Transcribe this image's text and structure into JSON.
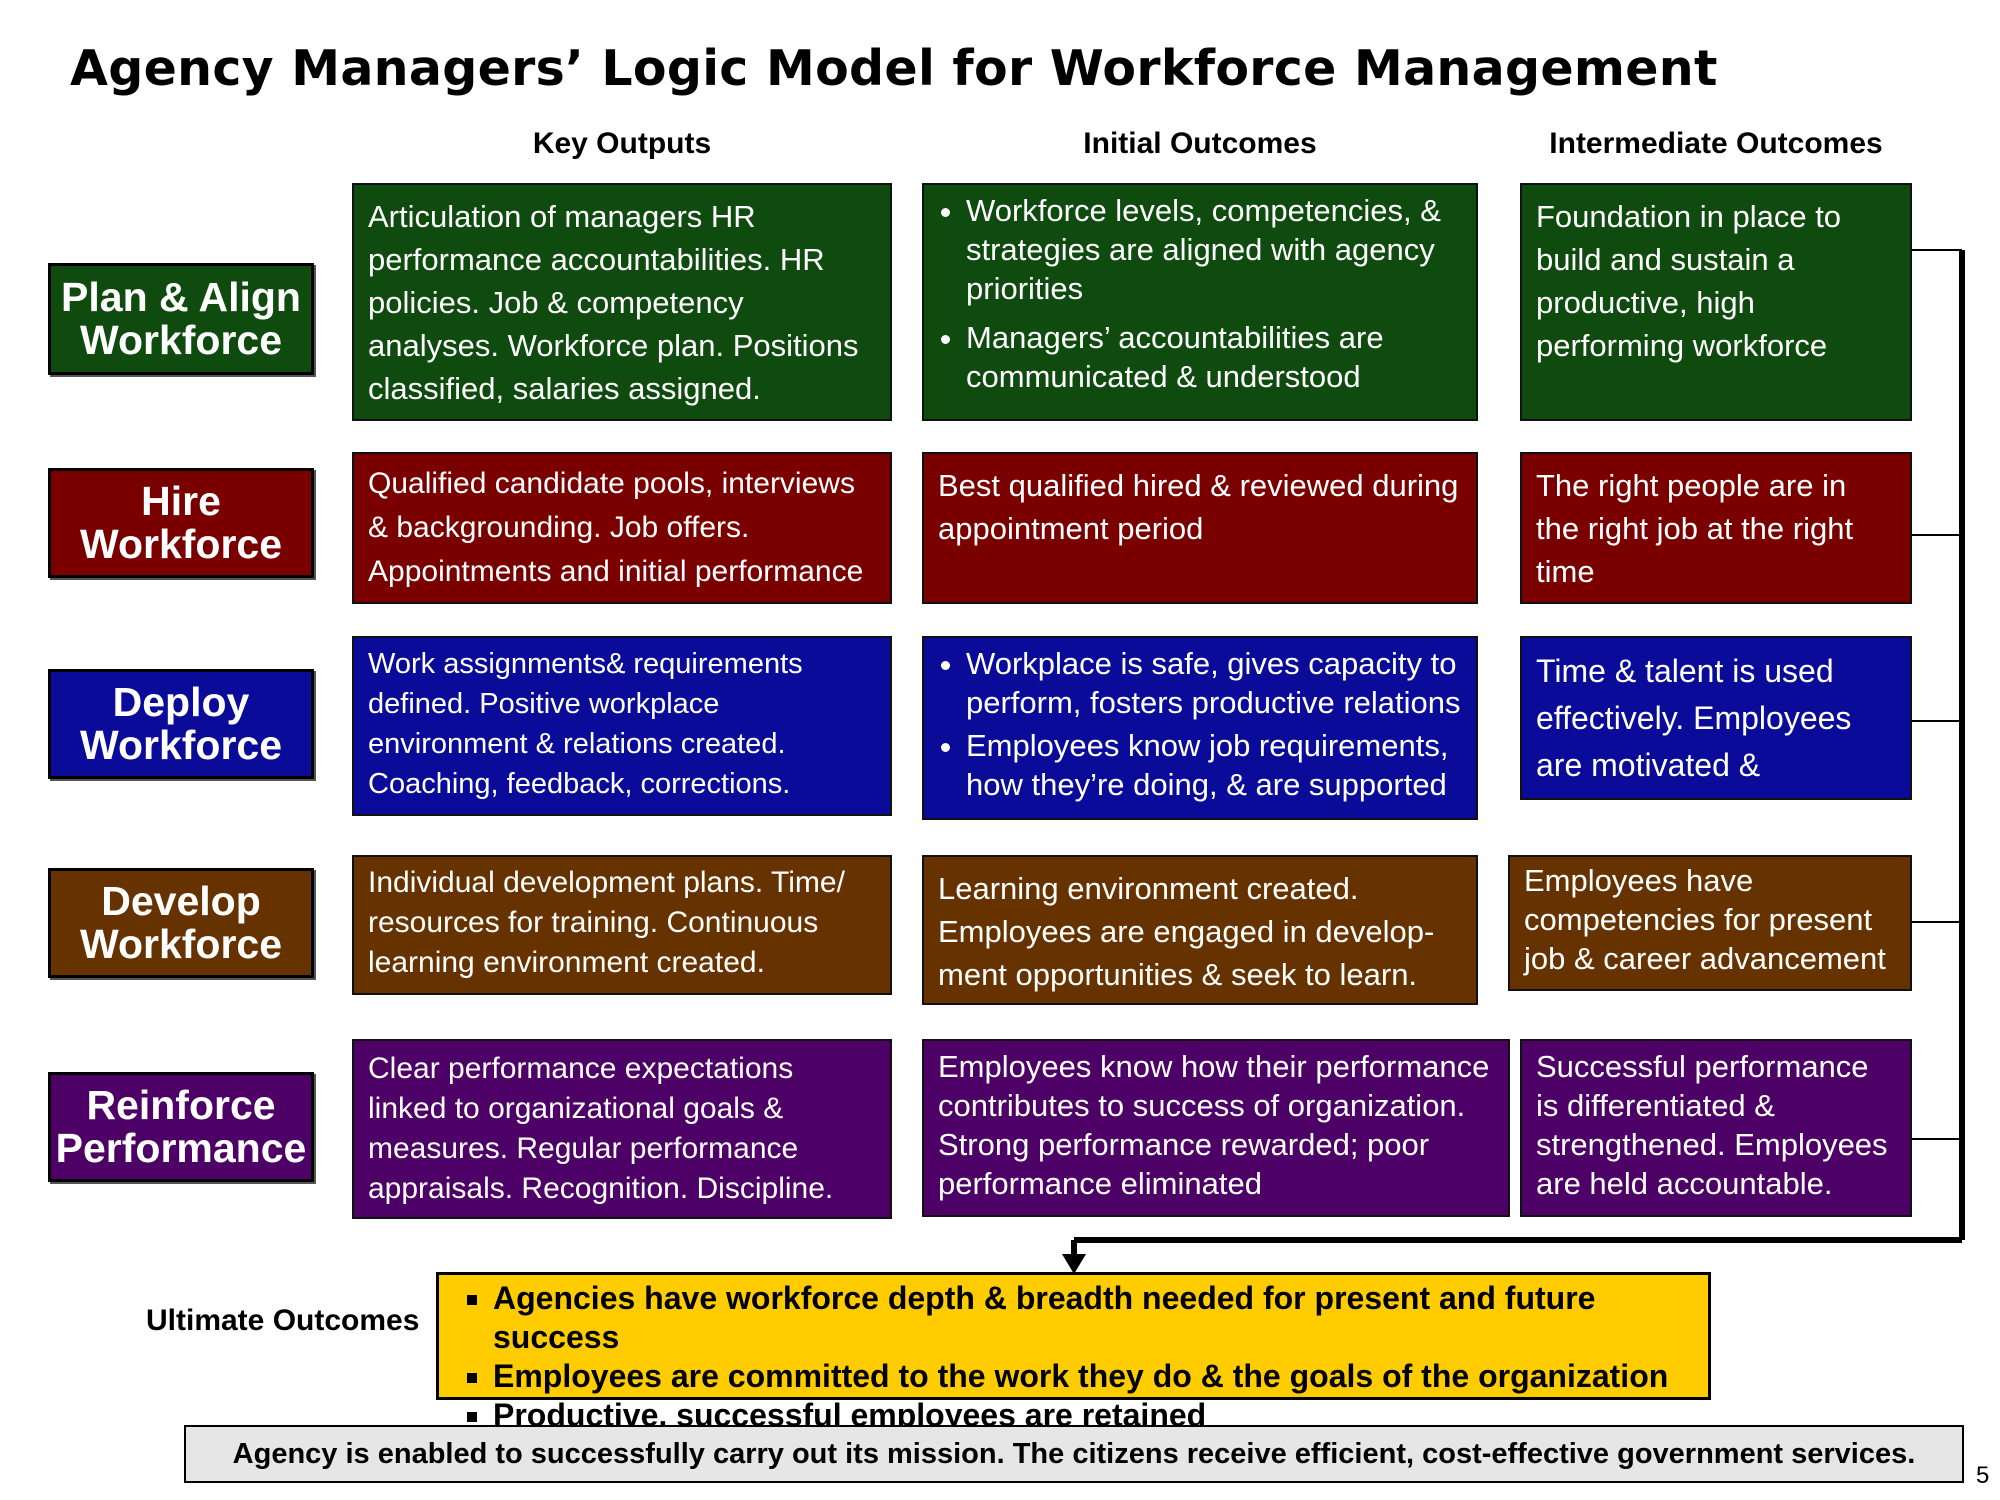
{
  "title": "Agency Managers’ Logic Model for Workforce Management",
  "columns": [
    "Key Outputs",
    "Initial Outcomes",
    "Intermediate Outcomes"
  ],
  "colors": {
    "plan": "#0f4a0f",
    "hire": "#7a0000",
    "deploy": "#0b0b99",
    "develop": "#663300",
    "reinforce": "#4d0066",
    "ultimate": "#ffcc00",
    "mission_bg": "#e6e6e6"
  },
  "rows": [
    {
      "label_line1": "Plan & Align",
      "label_line2": "Workforce",
      "output": "Articulation of managers HR performance accountabilities. HR policies. Job & competency analyses. Workforce plan. Positions classified, salaries assigned.",
      "initial": [
        "Workforce levels, competencies, & strategies are aligned with agency priorities",
        "Managers’ accountabilities are communicated & understood"
      ],
      "intermediate": "Foundation in place to build and sustain a productive, high performing workforce"
    },
    {
      "label_line1": "Hire",
      "label_line2": "Workforce",
      "output": "Qualified candidate pools, interviews & backgrounding. Job offers. Appointments and initial performance monitoring.",
      "initial": "Best qualified hired & reviewed during appointment period",
      "intermediate": "The right people are in the right job at the right time"
    },
    {
      "label_line1": "Deploy",
      "label_line2": "Workforce",
      "output": "Work assignments& requirements defined. Positive workplace environment & relations created. Coaching, feedback, corrections.",
      "initial": [
        "Workplace is safe, gives capacity to perform, fosters productive relations",
        "Employees know job requirements, how they’re doing, & are supported"
      ],
      "intermediate": "Time & talent is used effectively. Employees are motivated & productive."
    },
    {
      "label_line1": "Develop",
      "label_line2": "Workforce",
      "output": "Individual development plans. Time/ resources for training. Continuous learning environment created.",
      "initial": "Learning environment created. Employees are engaged in develop-ment opportunities & seek to learn.",
      "intermediate": "Employees have competencies for present job & career advancement"
    },
    {
      "label_line1": "Reinforce",
      "label_line2": "Performance",
      "output": "Clear performance expectations linked to organizational goals & measures. Regular performance appraisals. Recognition. Discipline.",
      "initial": "Employees know how their performance contributes to success of organization. Strong performance rewarded; poor performance eliminated",
      "intermediate": "Successful performance is differentiated & strengthened. Employees are held accountable."
    }
  ],
  "ultimate": {
    "label": "Ultimate Outcomes",
    "items": [
      "Agencies have workforce depth & breadth needed for present and future success",
      "Employees are committed to the work they do & the goals of the organization",
      "Productive, successful employees are retained"
    ]
  },
  "mission": "Agency is enabled to successfully carry out its mission. The citizens receive efficient, cost-effective government services.",
  "page_number": "5"
}
